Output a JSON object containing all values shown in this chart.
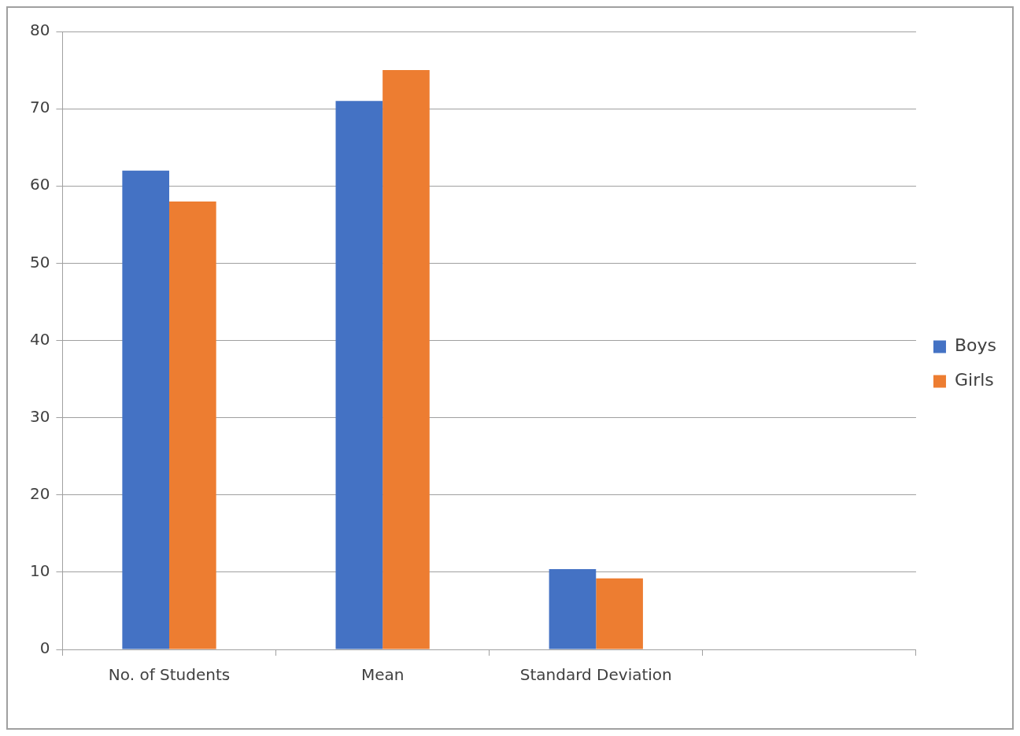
{
  "chart_data": {
    "type": "bar",
    "categories": [
      "No. of Students",
      "Mean",
      "Standard Deviation",
      null
    ],
    "series": [
      {
        "name": "Boys",
        "color": "#4472c4",
        "values": [
          62,
          71,
          10.4,
          null
        ]
      },
      {
        "name": "Girls",
        "color": "#ed7d31",
        "values": [
          58,
          75,
          9.2,
          null
        ]
      }
    ],
    "ylim": [
      0,
      80
    ],
    "yticks": [
      0,
      10,
      20,
      30,
      40,
      50,
      60,
      70,
      80
    ],
    "grid": "y",
    "legend": "right"
  }
}
